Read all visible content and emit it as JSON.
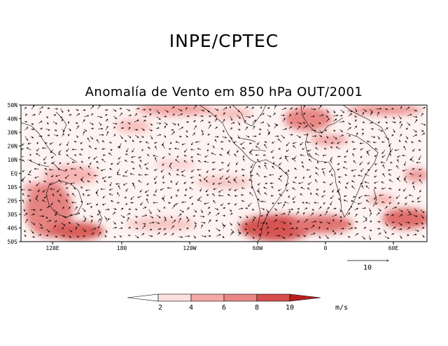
{
  "header": {
    "institution": "INPE/CPTEC",
    "title": "Anomalía de Vento em 850 hPa OUT/2001"
  },
  "map": {
    "lat_labels": [
      "50N",
      "40N",
      "30N",
      "20N",
      "10N",
      "EQ",
      "10S",
      "20S",
      "30S",
      "40S",
      "50S"
    ],
    "lon_labels": [
      "120E",
      "180",
      "120W",
      "60W",
      "0",
      "60E"
    ],
    "reference_vector": {
      "label": "10",
      "magnitude": 10
    }
  },
  "colorbar": {
    "ticks": [
      "2",
      "4",
      "6",
      "8",
      "10"
    ],
    "units": "m/s",
    "colors": [
      "#ffffff",
      "#fde1e0",
      "#f5a9a7",
      "#e98785",
      "#d64e4c",
      "#b71f1d"
    ]
  }
}
